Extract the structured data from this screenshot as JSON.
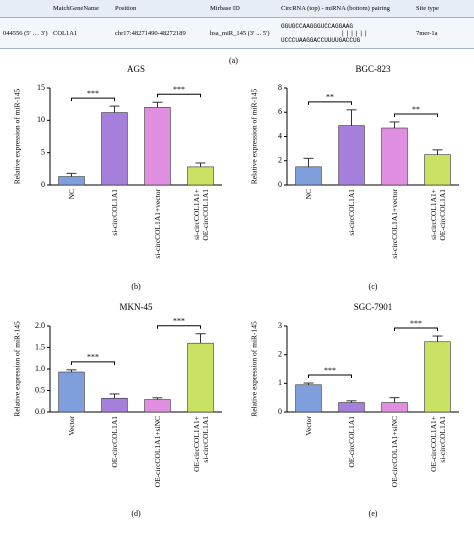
{
  "table": {
    "header": [
      "",
      "MatchGeneName",
      "Position",
      "Mirbase ID",
      "CircRNA (top) - miRNA (bottom) pairing",
      "Site type"
    ],
    "row": {
      "circ": "044556 (5′ … 3′)",
      "gene": "COL1A1",
      "position": "chr17:48271490-48272189",
      "mirbase": "hsa_miR_145 (3′ ... 5′)",
      "pairing_top": "GGUGCCAAGGGUCCAGGAAG",
      "pairing_bottom": "UCCCUAAGGACCUUUUGACCUG",
      "site": "7mer-1a"
    },
    "caption": "(a)"
  },
  "chart_data": [
    {
      "type": "bar",
      "title": "AGS",
      "caption": "(b)",
      "ylabel": "Relative expression of miR-145",
      "categories": [
        "NC",
        "si-circCOL1A1",
        "si-circCOL1A1+vector",
        "si-circCOL1A1+\nOE-circCOL1A1"
      ],
      "values": [
        1.3,
        11.2,
        12.0,
        2.8
      ],
      "errors": [
        0.5,
        1.0,
        0.8,
        0.6
      ],
      "colors": [
        "#7f9fdc",
        "#a57fd9",
        "#e08fe0",
        "#c9e263"
      ],
      "ylim": [
        0,
        15
      ],
      "yticks": [
        0,
        5,
        10,
        15
      ],
      "annotations": [
        {
          "between": [
            0,
            1
          ],
          "label": "***"
        },
        {
          "between": [
            2,
            3
          ],
          "label": "***"
        }
      ]
    },
    {
      "type": "bar",
      "title": "BGC-823",
      "caption": "(c)",
      "ylabel": "Relative expression of miR-145",
      "categories": [
        "NC",
        "si-circCOL1A1",
        "si-circCOL1A1+vector",
        "si-circCOL1A1+\nOE-circCOL1A1"
      ],
      "values": [
        1.5,
        4.9,
        4.7,
        2.5
      ],
      "errors": [
        0.7,
        1.3,
        0.5,
        0.4
      ],
      "colors": [
        "#7f9fdc",
        "#a57fd9",
        "#e08fe0",
        "#c9e263"
      ],
      "ylim": [
        0,
        8
      ],
      "yticks": [
        0,
        2,
        4,
        6,
        8
      ],
      "annotations": [
        {
          "between": [
            0,
            1
          ],
          "label": "**"
        },
        {
          "between": [
            2,
            3
          ],
          "label": "**"
        }
      ]
    },
    {
      "type": "bar",
      "title": "MKN-45",
      "caption": "(d)",
      "ylabel": "Relative expression of miR-145",
      "categories": [
        "Vector",
        "OE-circCOL1A1",
        "OE-circCOL1A1+siNC",
        "OE-circCOL1A1+\nsi-circCOL1A1"
      ],
      "values": [
        0.93,
        0.32,
        0.29,
        1.6
      ],
      "errors": [
        0.05,
        0.1,
        0.04,
        0.22
      ],
      "colors": [
        "#7f9fdc",
        "#a57fd9",
        "#e08fe0",
        "#c9e263"
      ],
      "ylim": [
        0,
        2
      ],
      "yticks": [
        {
          "value": 0,
          "label": "0.0"
        },
        0.5,
        {
          "value": 1,
          "label": "1.0"
        },
        1.5,
        {
          "value": 2,
          "label": "2.0"
        }
      ],
      "annotations": [
        {
          "between": [
            0,
            1
          ],
          "label": "***"
        },
        {
          "between": [
            2,
            3
          ],
          "label": "***"
        }
      ]
    },
    {
      "type": "bar",
      "title": "SGC-7901",
      "caption": "(e)",
      "ylabel": "Relative expression of miR-145",
      "categories": [
        "Vector",
        "OE-circCOL1A1",
        "OE-circCOL1A1+siNC",
        "OE-circCOL1A1+\nsi-circCOL1A1"
      ],
      "values": [
        0.95,
        0.33,
        0.33,
        2.45
      ],
      "errors": [
        0.06,
        0.06,
        0.17,
        0.2
      ],
      "colors": [
        "#7f9fdc",
        "#a57fd9",
        "#e08fe0",
        "#c9e263"
      ],
      "ylim": [
        0,
        3
      ],
      "yticks": [
        0,
        1,
        2,
        3
      ],
      "annotations": [
        {
          "between": [
            0,
            1
          ],
          "label": "***"
        },
        {
          "between": [
            2,
            3
          ],
          "label": "***"
        }
      ]
    }
  ]
}
